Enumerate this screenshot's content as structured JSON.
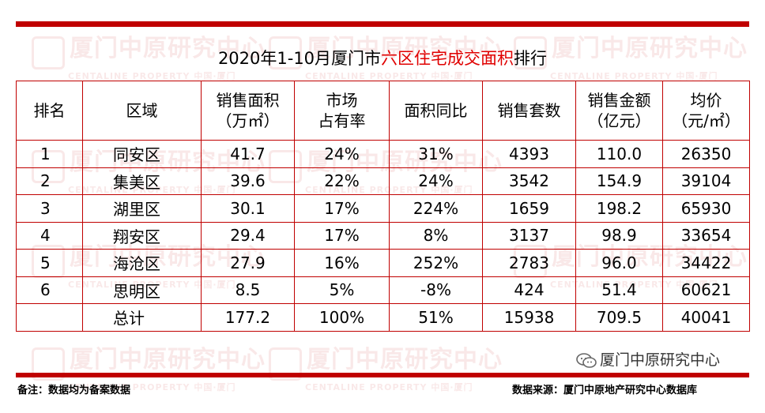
{
  "title": {
    "prefix": "2020年1-10月厦门市",
    "highlight": "六区住宅成交面积",
    "suffix": "排行"
  },
  "table": {
    "headers": [
      {
        "line1": "排名",
        "line2": ""
      },
      {
        "line1": "区域",
        "line2": ""
      },
      {
        "line1": "销售面积",
        "line2": "（万㎡）"
      },
      {
        "line1": "市场",
        "line2": "占有率"
      },
      {
        "line1": "面积同比",
        "line2": ""
      },
      {
        "line1": "销售套数",
        "line2": ""
      },
      {
        "line1": "销售金额",
        "line2": "（亿元）"
      },
      {
        "line1": "均价",
        "line2": "（元/㎡）"
      }
    ],
    "rows": [
      {
        "rank": "1",
        "region": "同安区",
        "area": "41.7",
        "share": "24%",
        "yoy": "31%",
        "units": "4393",
        "amount": "110.0",
        "price": "26350"
      },
      {
        "rank": "2",
        "region": "集美区",
        "area": "39.6",
        "share": "22%",
        "yoy": "24%",
        "units": "3542",
        "amount": "154.9",
        "price": "39104"
      },
      {
        "rank": "3",
        "region": "湖里区",
        "area": "30.1",
        "share": "17%",
        "yoy": "224%",
        "units": "1659",
        "amount": "198.2",
        "price": "65930"
      },
      {
        "rank": "4",
        "region": "翔安区",
        "area": "29.4",
        "share": "17%",
        "yoy": "8%",
        "units": "3137",
        "amount": "98.9",
        "price": "33654"
      },
      {
        "rank": "5",
        "region": "海沧区",
        "area": "27.9",
        "share": "16%",
        "yoy": "252%",
        "units": "2783",
        "amount": "96.0",
        "price": "34422"
      },
      {
        "rank": "6",
        "region": "思明区",
        "area": "8.5",
        "share": "5%",
        "yoy": "-8%",
        "units": "424",
        "amount": "51.4",
        "price": "60621"
      }
    ],
    "total": {
      "rank": "",
      "region": "总计",
      "area": "177.2",
      "share": "100%",
      "yoy": "51%",
      "units": "15938",
      "amount": "709.5",
      "price": "40041"
    }
  },
  "footer": {
    "note": "备注：数据均为备案数据",
    "source": "数据来源：厦门中原地产研究中心数据库"
  },
  "wechat": {
    "icon": "wechat-icon",
    "label": "厦门中原研究中心"
  },
  "watermark": {
    "main": "厦门中原研究中心",
    "sub": "CENTALINE PROPERTY  中国·厦门"
  },
  "colors": {
    "accent": "#c00000",
    "highlight": "#e00000"
  }
}
